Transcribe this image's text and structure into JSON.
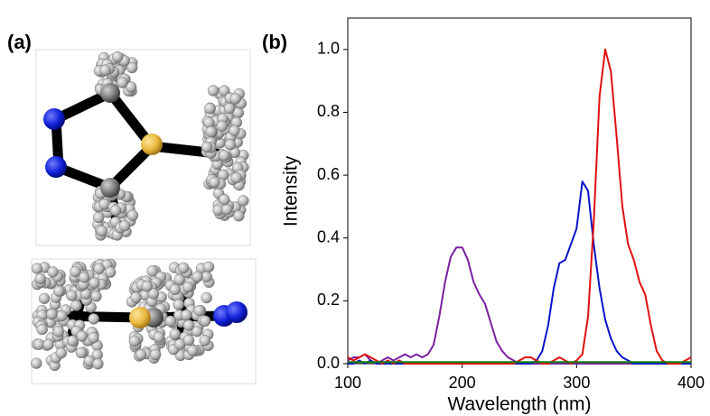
{
  "labels": {
    "a": "(a)",
    "b": "(b)"
  },
  "chart_data": {
    "type": "line",
    "xlabel": "Wavelength (nm)",
    "ylabel": "Intensity",
    "xlim": [
      100,
      400
    ],
    "xticks": [
      100,
      200,
      300,
      400
    ],
    "ylim": [
      0,
      1.1
    ],
    "yticks": [
      {
        "value": 0,
        "label": "0.0"
      },
      {
        "value": 0.2,
        "label": "0.2"
      },
      {
        "value": 0.4,
        "label": "0.4"
      },
      {
        "value": 0.6,
        "label": "0.6"
      },
      {
        "value": 0.8,
        "label": "0.8"
      },
      {
        "value": 1.0,
        "label": "1.0"
      }
    ],
    "x": [
      100,
      105,
      110,
      115,
      120,
      125,
      130,
      135,
      140,
      145,
      150,
      155,
      160,
      165,
      170,
      175,
      180,
      185,
      190,
      195,
      200,
      205,
      210,
      215,
      220,
      225,
      230,
      235,
      240,
      245,
      250,
      255,
      260,
      265,
      270,
      275,
      280,
      285,
      290,
      295,
      300,
      305,
      310,
      315,
      320,
      325,
      330,
      335,
      340,
      345,
      350,
      355,
      360,
      365,
      370,
      375,
      380,
      385,
      390,
      395,
      400
    ],
    "series": [
      {
        "color": "#7a1fa0",
        "values": [
          0.01,
          0.02,
          0.02,
          0.03,
          0.01,
          0.0,
          0.01,
          0.02,
          0.01,
          0.02,
          0.03,
          0.02,
          0.03,
          0.02,
          0.03,
          0.06,
          0.15,
          0.26,
          0.34,
          0.37,
          0.37,
          0.33,
          0.26,
          0.22,
          0.19,
          0.13,
          0.07,
          0.04,
          0.02,
          0.01,
          0.0,
          0.0,
          0.0,
          0.0,
          0.0,
          0.0,
          0.0,
          0.0,
          0.0,
          0.0,
          0.0,
          0.0,
          0.0,
          0.0,
          0.0,
          0.0,
          0.0,
          0.0,
          0.0,
          0.0,
          0.0,
          0.0,
          0.0,
          0.0,
          0.0,
          0.0,
          0.0,
          0.0,
          0.0,
          0.0,
          0.0
        ]
      },
      {
        "color": "#0a14c8",
        "values": [
          0.0,
          0.0,
          0.01,
          0.0,
          0.01,
          0.0,
          0.0,
          0.0,
          0.0,
          0.0,
          0.0,
          0.0,
          0.0,
          0.0,
          0.0,
          0.0,
          0.0,
          0.0,
          0.0,
          0.0,
          0.0,
          0.0,
          0.0,
          0.0,
          0.0,
          0.0,
          0.0,
          0.0,
          0.0,
          0.0,
          0.0,
          0.0,
          0.0,
          0.01,
          0.04,
          0.12,
          0.24,
          0.32,
          0.33,
          0.38,
          0.43,
          0.58,
          0.55,
          0.38,
          0.24,
          0.14,
          0.08,
          0.04,
          0.02,
          0.01,
          0.0,
          0.0,
          0.0,
          0.0,
          0.0,
          0.0,
          0.0,
          0.0,
          0.0,
          0.0,
          0.0
        ]
      },
      {
        "color": "#e01010",
        "values": [
          0.02,
          0.01,
          0.02,
          0.03,
          0.02,
          0.01,
          0.0,
          0.01,
          0.0,
          0.01,
          0.0,
          0.0,
          0.0,
          0.0,
          0.0,
          0.0,
          0.0,
          0.0,
          0.0,
          0.0,
          0.0,
          0.0,
          0.0,
          0.0,
          0.0,
          0.0,
          0.0,
          0.0,
          0.0,
          0.0,
          0.01,
          0.02,
          0.02,
          0.01,
          0.0,
          0.0,
          0.01,
          0.02,
          0.01,
          0.0,
          0.01,
          0.03,
          0.15,
          0.45,
          0.85,
          1.0,
          0.93,
          0.72,
          0.5,
          0.38,
          0.33,
          0.26,
          0.22,
          0.12,
          0.04,
          0.01,
          0.0,
          0.0,
          0.0,
          0.01,
          0.02
        ]
      },
      {
        "color": "#108010",
        "values": [
          0.005,
          0.005,
          0.005,
          0.005,
          0.005,
          0.005,
          0.005,
          0.005,
          0.005,
          0.005,
          0.005,
          0.005,
          0.005,
          0.005,
          0.005,
          0.005,
          0.005,
          0.005,
          0.005,
          0.005,
          0.005,
          0.005,
          0.005,
          0.005,
          0.005,
          0.005,
          0.005,
          0.005,
          0.005,
          0.005,
          0.005,
          0.005,
          0.005,
          0.005,
          0.005,
          0.005,
          0.005,
          0.005,
          0.005,
          0.005,
          0.005,
          0.005,
          0.005,
          0.005,
          0.005,
          0.005,
          0.005,
          0.005,
          0.005,
          0.005,
          0.005,
          0.005,
          0.005,
          0.005,
          0.005,
          0.005,
          0.005,
          0.005,
          0.005,
          0.005,
          0.005
        ]
      }
    ]
  }
}
